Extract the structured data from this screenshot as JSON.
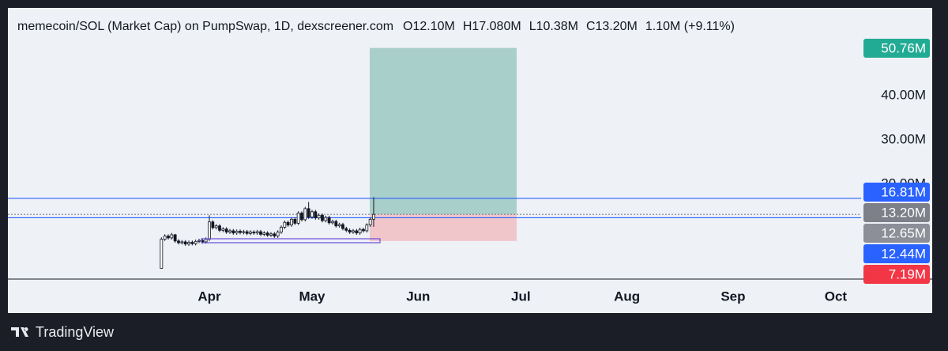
{
  "chart_data": {
    "type": "candlestick",
    "title": "memecoin/SOL (Market Cap) on PumpSwap, 1D, dexscreener.com",
    "ohlc_labels": [
      "O12.10M",
      "H17.080M",
      "L10.38M",
      "C13.20M",
      "1.10M (+9.11%)"
    ],
    "brand": "TradingView",
    "xlim": [
      32.15,
      281.4
    ],
    "xticks": [
      {
        "value": 91,
        "label": "Apr"
      },
      {
        "value": 121,
        "label": "May"
      },
      {
        "value": 152,
        "label": "Jun"
      },
      {
        "value": 182,
        "label": "Jul"
      },
      {
        "value": 213,
        "label": "Aug"
      },
      {
        "value": 244,
        "label": "Sep"
      },
      {
        "value": 274,
        "label": "Oct"
      }
    ],
    "ylim": [
      -1.4,
      59.8
    ],
    "yticks": [
      {
        "value": 20,
        "label": "20.00M"
      },
      {
        "value": 30,
        "label": "30.00M"
      },
      {
        "value": 40,
        "label": "40.00M"
      }
    ],
    "x": [
      77,
      78,
      79,
      80,
      81,
      82,
      83,
      84,
      85,
      86,
      87,
      88,
      89,
      90,
      91,
      92,
      93,
      94,
      95,
      96,
      97,
      98,
      99,
      100,
      101,
      102,
      103,
      104,
      105,
      106,
      107,
      108,
      109,
      110,
      111,
      112,
      113,
      114,
      115,
      116,
      117,
      118,
      119,
      120,
      121,
      122,
      123,
      124,
      125,
      126,
      127,
      128,
      129,
      130,
      131,
      132,
      133,
      134,
      135,
      136,
      137,
      138,
      139
    ],
    "open": [
      1.0,
      7.6,
      8.3,
      7.9,
      8.6,
      7.2,
      6.8,
      7.0,
      6.5,
      6.9,
      6.6,
      7.1,
      7.3,
      7.0,
      7.6,
      11.5,
      10.2,
      10.6,
      9.6,
      9.9,
      9.2,
      9.5,
      9.0,
      9.4,
      9.1,
      9.3,
      8.9,
      9.2,
      9.0,
      9.3,
      8.7,
      9.0,
      8.5,
      8.8,
      8.3,
      9.2,
      10.3,
      11.4,
      10.8,
      12.1,
      11.2,
      13.5,
      12.0,
      14.5,
      12.6,
      13.8,
      12.4,
      13.0,
      11.8,
      12.5,
      11.3,
      11.6,
      10.6,
      10.9,
      10.0,
      9.6,
      9.2,
      9.5,
      9.0,
      9.8,
      9.5,
      10.8,
      12.1
    ],
    "high": [
      8.0,
      8.7,
      8.7,
      9.0,
      8.8,
      7.6,
      7.4,
      7.4,
      7.3,
      7.3,
      7.5,
      7.7,
      7.7,
      8.0,
      13.0,
      11.9,
      11.0,
      11.0,
      10.3,
      10.3,
      9.9,
      9.9,
      9.8,
      9.8,
      9.7,
      9.7,
      9.6,
      9.6,
      9.7,
      9.7,
      9.4,
      9.4,
      9.2,
      9.2,
      9.6,
      10.7,
      11.8,
      11.8,
      12.5,
      12.5,
      13.9,
      13.9,
      14.9,
      16.0,
      14.2,
      14.2,
      13.4,
      13.4,
      12.9,
      12.9,
      12.0,
      12.0,
      11.3,
      11.3,
      10.4,
      10.0,
      9.9,
      9.9,
      10.2,
      10.2,
      11.2,
      12.5,
      17.08
    ],
    "low": [
      0.9,
      7.2,
      7.5,
      7.5,
      6.8,
      6.4,
      6.4,
      6.1,
      6.1,
      6.2,
      6.2,
      6.7,
      6.6,
      6.6,
      7.2,
      9.8,
      9.8,
      9.2,
      9.2,
      8.8,
      8.8,
      8.6,
      8.6,
      8.7,
      8.7,
      8.5,
      8.5,
      8.6,
      8.6,
      8.3,
      8.3,
      8.1,
      8.1,
      7.9,
      7.9,
      8.8,
      9.9,
      10.4,
      10.4,
      10.8,
      10.8,
      11.6,
      11.6,
      12.2,
      12.2,
      12.0,
      12.0,
      11.4,
      11.4,
      10.9,
      10.9,
      10.2,
      10.2,
      9.6,
      9.2,
      8.8,
      8.8,
      8.6,
      8.6,
      9.1,
      9.1,
      10.4,
      10.38
    ],
    "close": [
      7.6,
      8.3,
      7.9,
      8.6,
      7.2,
      6.8,
      7.0,
      6.5,
      6.9,
      6.6,
      7.1,
      7.3,
      7.0,
      7.6,
      11.5,
      10.2,
      10.6,
      9.6,
      9.9,
      9.2,
      9.5,
      9.0,
      9.4,
      9.1,
      9.3,
      8.9,
      9.2,
      9.0,
      9.3,
      8.7,
      9.0,
      8.5,
      8.8,
      8.3,
      9.2,
      10.3,
      11.4,
      10.8,
      12.1,
      11.2,
      13.5,
      12.0,
      14.5,
      12.6,
      13.8,
      12.4,
      13.0,
      11.8,
      12.5,
      11.3,
      11.6,
      10.6,
      10.9,
      10.0,
      9.6,
      9.2,
      9.5,
      9.0,
      9.8,
      9.5,
      10.8,
      12.1,
      13.2
    ],
    "price_labels": [
      {
        "value": 50.76,
        "label": "50.76M",
        "color": "#22ab94"
      },
      {
        "value": 16.81,
        "label": "16.81M",
        "color": "#2962ff",
        "line": "solid"
      },
      {
        "value": 13.2,
        "label": "13.20M",
        "color": "#7d8088",
        "line": "dotted"
      },
      {
        "value": 12.65,
        "label": "12.65M",
        "color": "#8c8f97"
      },
      {
        "value": 12.44,
        "label": "12.44M",
        "color": "#2962ff",
        "line": "solid"
      },
      {
        "value": 7.19,
        "label": "7.19M",
        "color": "#f23645"
      }
    ],
    "position": {
      "entry": 2,
      "target": 0,
      "stop": 5,
      "profit_color": "#a9cfca",
      "loss_color": "#f1c6cb"
    }
  }
}
